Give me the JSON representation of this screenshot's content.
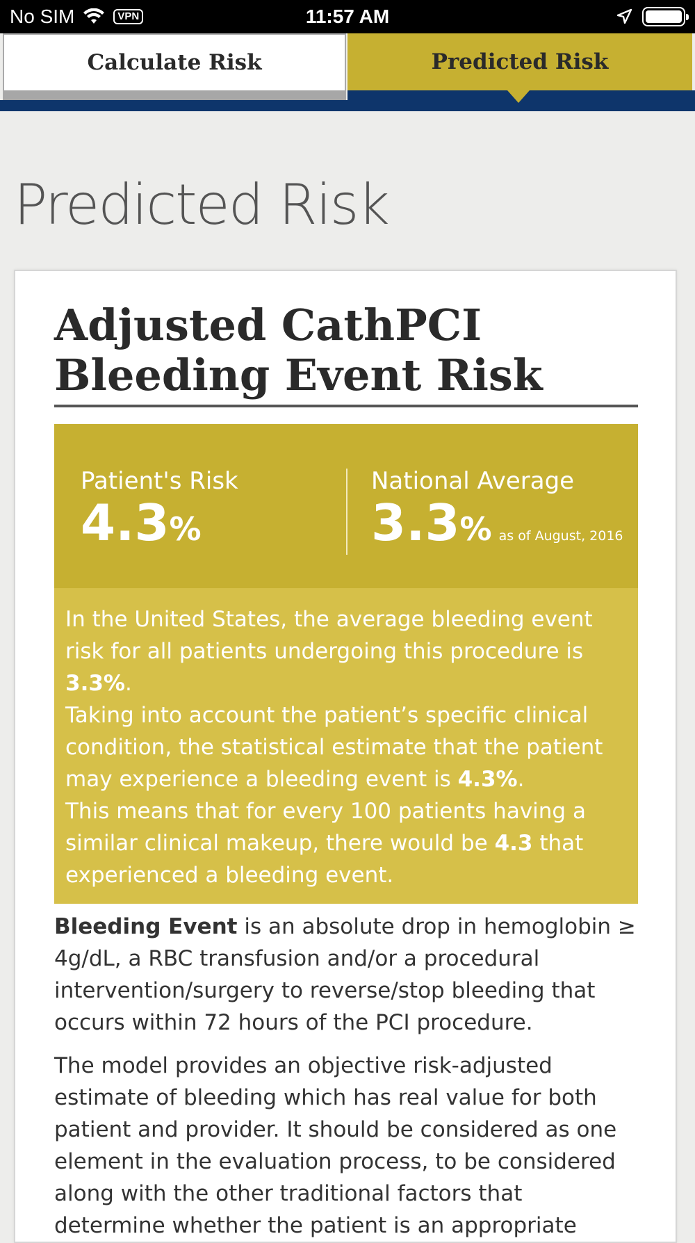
{
  "status_bar": {
    "carrier": "No SIM",
    "vpn": "VPN",
    "time": "11:57 AM"
  },
  "tabs": {
    "calculate": "Calculate Risk",
    "predicted": "Predicted Risk"
  },
  "page_title": "Predicted Risk",
  "card": {
    "title": "Adjusted CathPCI Bleeding Event Risk",
    "patient_label": "Patient's Risk",
    "patient_value": "4.3",
    "patient_unit": "%",
    "national_label": "National Average",
    "national_value": "3.3",
    "national_unit": "%",
    "national_asof": "as of August, 2016",
    "explain": {
      "p1_a": "In the United States, the average bleeding event risk for all patients undergoing this procedure is ",
      "p1_b": "3.3%",
      "p1_c": ".",
      "p2_a": "Taking into account the patient’s specific clinical condition, the statistical estimate that the patient may experience a bleeding event is ",
      "p2_b": "4.3%",
      "p2_c": ".",
      "p3_a": "This means that for every 100 patients having a similar clinical makeup, there would be ",
      "p3_b": "4.3",
      "p3_c": " that experienced a bleeding event."
    },
    "definition_term": "Bleeding Event",
    "definition_text": " is an absolute drop in hemoglobin ≥ 4g/dL, a RBC transfusion and/or a procedural intervention/surgery to reverse/stop bleeding that occurs within 72 hours of the PCI procedure.",
    "model_text": "The model provides an objective risk-adjusted estimate of bleeding which has real value for both patient and provider. It should be considered as one element in the evaluation process, to be considered along with the other traditional factors that determine whether the patient is an appropriate"
  },
  "colors": {
    "gold": "#c6b031",
    "gold_light": "#d6c049",
    "navy": "#0e356b"
  },
  "icons": [
    "wifi-icon",
    "location-arrow-icon",
    "battery-icon"
  ]
}
